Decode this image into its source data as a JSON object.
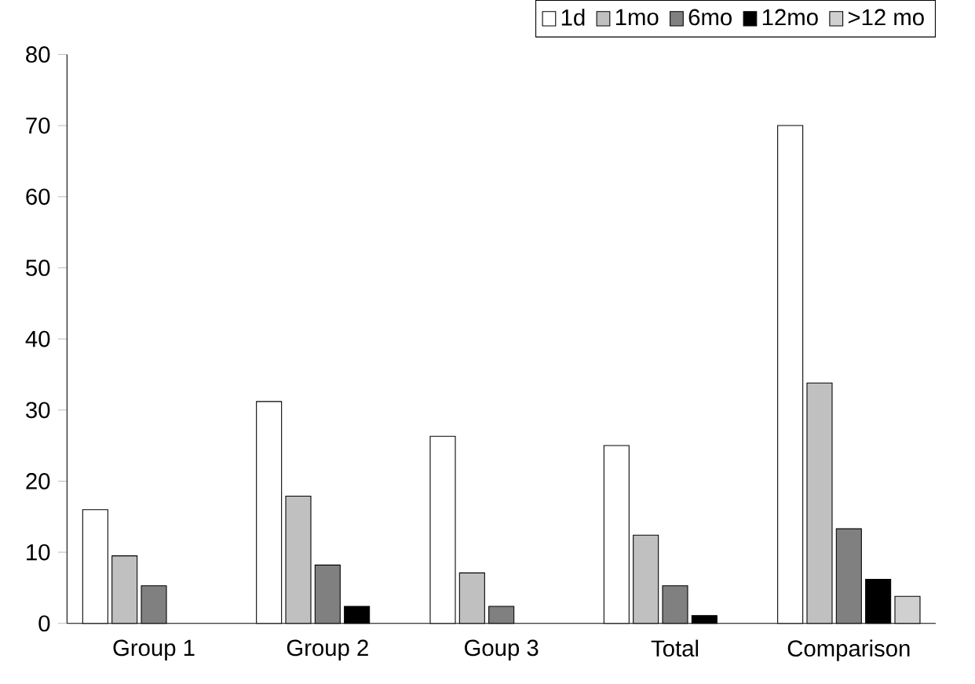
{
  "chart_data": {
    "type": "bar",
    "categories": [
      "Group 1",
      "Group 2",
      "Goup 3",
      "Total",
      "Comparison"
    ],
    "series": [
      {
        "name": "1d",
        "color": "#ffffff",
        "values": [
          16,
          31.2,
          26.3,
          25,
          70
        ]
      },
      {
        "name": "1mo",
        "color": "#c0c0c0",
        "values": [
          9.5,
          17.9,
          7.1,
          12.4,
          33.8
        ]
      },
      {
        "name": "6mo",
        "color": "#808080",
        "values": [
          5.3,
          8.2,
          2.4,
          5.3,
          13.3
        ]
      },
      {
        "name": "12mo",
        "color": "#000000",
        "values": [
          null,
          2.4,
          null,
          1.1,
          6.2
        ]
      },
      {
        "name": ">12 mo",
        "color": "#d0d0d0",
        "values": [
          null,
          null,
          null,
          null,
          3.8
        ]
      }
    ],
    "ylim": [
      0,
      80
    ],
    "yticks": [
      0,
      10,
      20,
      30,
      40,
      50,
      60,
      70,
      80
    ],
    "grid": false,
    "legend": "top right"
  }
}
